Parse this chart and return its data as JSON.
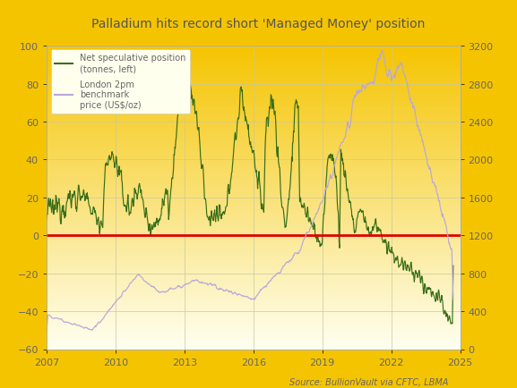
{
  "title": "Palladium hits record short 'Managed Money' position",
  "source_text": "Source: BullionVault via CFTC, LBMA",
  "legend_line1": "Net speculative position\n(tonnes, left)",
  "legend_line2": "London 2pm\nbenchmark\nprice (US$/oz)",
  "ylim_left": [
    -60,
    100
  ],
  "ylim_right": [
    0,
    3200
  ],
  "yticks_left": [
    -60,
    -40,
    -20,
    0,
    20,
    40,
    60,
    80,
    100
  ],
  "yticks_right": [
    0,
    400,
    800,
    1200,
    1600,
    2000,
    2400,
    2800,
    3200
  ],
  "background_outer": "#F5C400",
  "background_inner_top": "#F5C400",
  "background_inner_bottom": "#FFFFF0",
  "grid_color": "#C8C8A0",
  "net_pos_color": "#3a6e18",
  "price_color": "#b8a8d8",
  "zero_line_color": "#DD0000",
  "title_color": "#555555",
  "axis_color": "#666666",
  "source_color": "#666666",
  "xlim": [
    2007,
    2025
  ],
  "xticks": [
    2007,
    2010,
    2013,
    2016,
    2019,
    2022,
    2025
  ]
}
